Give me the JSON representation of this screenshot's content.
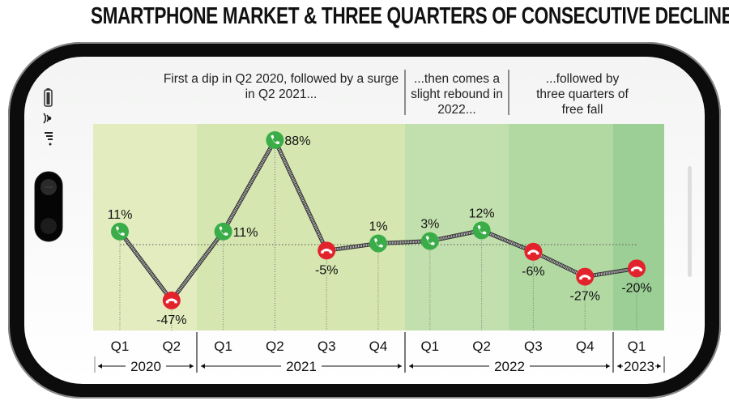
{
  "title": "SMARTPHONE MARKET & THREE QUARTERS OF CONSECUTIVE DECLINE",
  "annotations": [
    {
      "lines": [
        "First a dip in Q2 2020, followed by a surge",
        "in Q2 2021..."
      ]
    },
    {
      "lines": [
        "...then comes a",
        "slight rebound in",
        "2022..."
      ]
    },
    {
      "lines": [
        "...followed by",
        "three quarters of",
        "free fall"
      ]
    }
  ],
  "icons": {
    "status": [
      "battery-icon",
      "wifi-icon",
      "signal-icon"
    ],
    "growth": "phone-call-icon",
    "decline": "phone-hangup-icon"
  },
  "colors": {
    "growth": "#3aad48",
    "decline": "#e3232b",
    "band_2020": "#e3ecbf",
    "band_2021": "#d5e6b0",
    "band_2022a": "#c2e0ad",
    "band_2022b": "#b3d9a3",
    "band_2023": "#9bcf95"
  },
  "chart_data": {
    "type": "line",
    "title": "SMARTPHONE MARKET & THREE QUARTERS OF CONSECUTIVE DECLINE",
    "categories": [
      "Q1",
      "Q2",
      "Q1",
      "Q2",
      "Q3",
      "Q4",
      "Q1",
      "Q2",
      "Q3",
      "Q4",
      "Q1"
    ],
    "years": [
      {
        "label": "2020",
        "quarters": 2
      },
      {
        "label": "2021",
        "quarters": 4
      },
      {
        "label": "2022",
        "quarters": 4
      },
      {
        "label": "2023",
        "quarters": 1
      }
    ],
    "values": [
      11,
      -47,
      11,
      88,
      -5,
      1,
      3,
      12,
      -6,
      -27,
      -20
    ],
    "labels": [
      "11%",
      "-47%",
      "11%",
      "88%",
      "-5%",
      "1%",
      "3%",
      "12%",
      "-6%",
      "-27%",
      "-20%"
    ],
    "ylim": [
      -60,
      100
    ],
    "baseline": 0,
    "grid": false,
    "legend": "none"
  }
}
